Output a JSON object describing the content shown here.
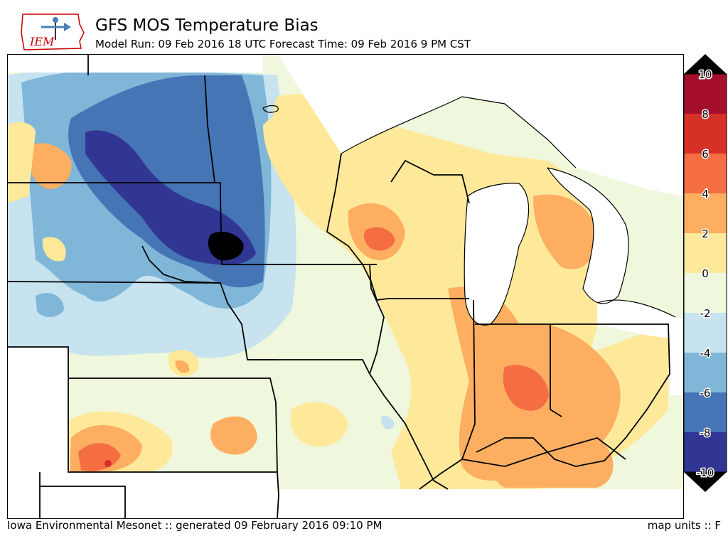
{
  "header": {
    "logo_text": "IEM",
    "title": "GFS MOS Temperature Bias",
    "subtitle": "Model Run: 09 Feb 2016 18 UTC Forecast Time: 09 Feb 2016 9 PM CST"
  },
  "footer": {
    "credit": "Iowa Environmental Mesonet :: generated 09 February 2016 09:10 PM",
    "units": "map units :: F"
  },
  "colorbar": {
    "ticks": [
      "10",
      "8",
      "6",
      "4",
      "2",
      "0",
      "-2",
      "-4",
      "-6",
      "-8",
      "-10"
    ],
    "bins": [
      {
        "range": "8 to 10",
        "color": "#a50f2c"
      },
      {
        "range": "6 to 8",
        "color": "#d73027"
      },
      {
        "range": "4 to 6",
        "color": "#f46d43"
      },
      {
        "range": "2 to 4",
        "color": "#fdae61"
      },
      {
        "range": "0 to 2",
        "color": "#fee99b"
      },
      {
        "range": "-2 to 0",
        "color": "#eff7dc"
      },
      {
        "range": "-4 to -2",
        "color": "#c6e3ef"
      },
      {
        "range": "-6 to -4",
        "color": "#80b6d8"
      },
      {
        "range": "-8 to -6",
        "color": "#4575b4"
      },
      {
        "range": "-10 to -8",
        "color": "#313695"
      }
    ],
    "over_color": "#000000",
    "under_color": "#000000"
  }
}
